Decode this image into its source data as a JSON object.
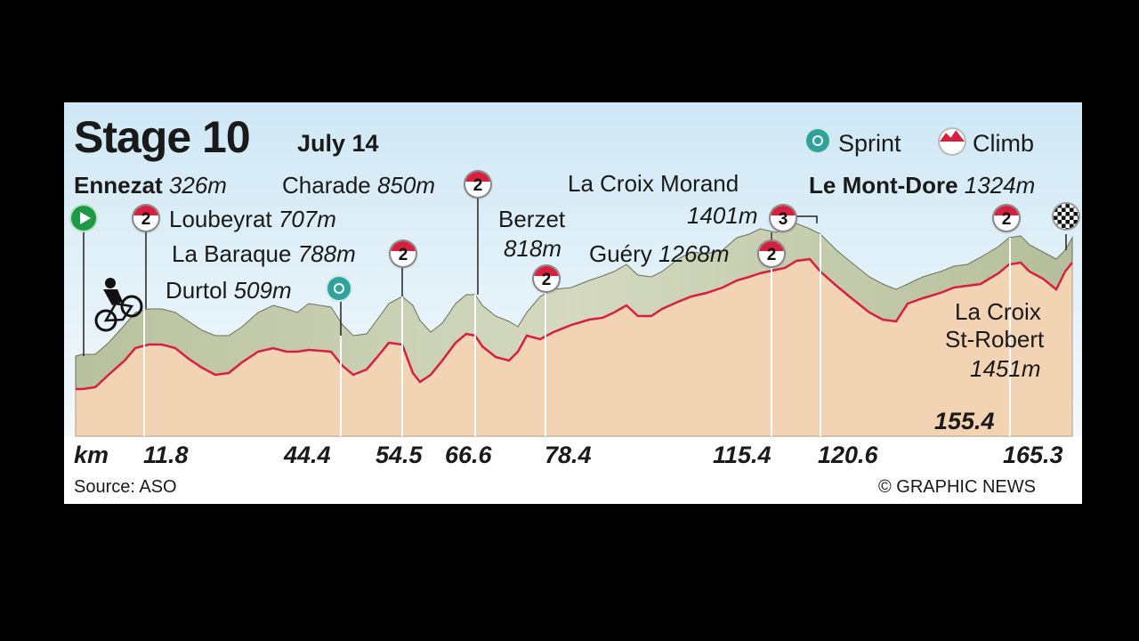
{
  "header": {
    "title": "Stage 10",
    "date": "July 14"
  },
  "legend": {
    "sprint": {
      "label": "Sprint",
      "icon": "sprint-icon",
      "color": "#2fa39b"
    },
    "climb": {
      "label": "Climb",
      "icon": "climb-icon",
      "color": "#d81f3e"
    }
  },
  "places": {
    "start": {
      "name": "Ennezat",
      "alt": "326m"
    },
    "finish": {
      "name": "Le Mont-Dore",
      "alt": "1324m"
    },
    "loubeyrat": {
      "name": "Loubeyrat",
      "alt": "707m",
      "category": "2"
    },
    "la_baraque": {
      "name": "La Baraque",
      "alt": "788m",
      "category": "2"
    },
    "durtol": {
      "name": "Durtol",
      "alt": "509m"
    },
    "charade": {
      "name": "Charade",
      "alt": "850m",
      "category": "2"
    },
    "berzet": {
      "name": "Berzet",
      "alt": "818m",
      "category": "2"
    },
    "guery": {
      "name": "Guéry",
      "alt": "1268m",
      "category": "2"
    },
    "la_croix_morand": {
      "name": "La Croix Morand",
      "alt": "1401m",
      "category": "3"
    },
    "la_croix_st_robert": {
      "name1": "La Croix",
      "name2": "St-Robert",
      "alt": "1451m",
      "category": "2"
    }
  },
  "km_axis": {
    "unit_label": "km",
    "ticks": [
      "11.8",
      "44.4",
      "54.5",
      "66.6",
      "78.4",
      "115.4",
      "120.6",
      "165.3"
    ],
    "extra_label": "155.4"
  },
  "footer": {
    "source": "Source: ASO",
    "credit": "© GRAPHIC NEWS"
  },
  "colors": {
    "ground": "#f3d6b8",
    "ridge": "#c5ccb0",
    "road": "#d81f3e",
    "sky": "#dbeef7"
  }
}
